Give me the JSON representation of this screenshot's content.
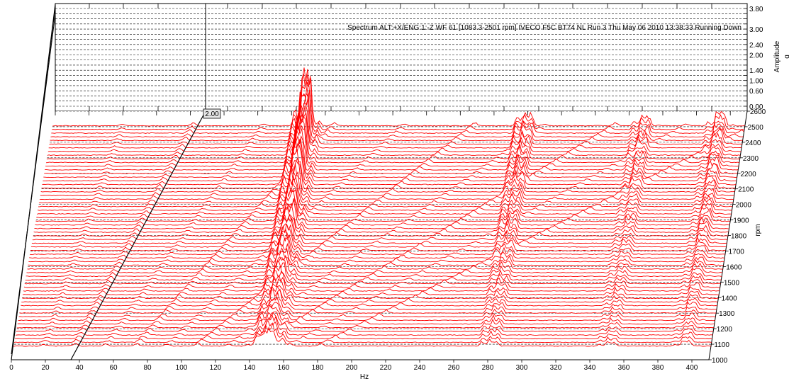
{
  "chart_data": {
    "type": "waterfall",
    "title": "Spectrum ALT:+X/ENG:1:-Z WF 61 [1083.3-2501 rpm]  IVECO F5C  BT74 NL Run 3  Thu May 06 2010 13:38:33  Running Down",
    "xlabel": "Hz",
    "ylabel": "rpm",
    "zlabel_top": "Amplitude",
    "zlabel_unit": "g",
    "cursor_label": "2.00",
    "x_ticks": [
      0,
      20,
      40,
      60,
      80,
      100,
      120,
      140,
      160,
      180,
      200,
      220,
      240,
      260,
      280,
      300,
      320,
      340,
      360,
      380,
      400
    ],
    "rpm_ticks": [
      1000,
      1100,
      1200,
      1300,
      1400,
      1500,
      1600,
      1700,
      1800,
      1900,
      2000,
      2100,
      2200,
      2300,
      2400,
      2500,
      2600
    ],
    "amp_ticks": [
      "0.00",
      "0.60",
      "1.00",
      "1.40",
      "2.00",
      "2.40",
      "3.00",
      "3.80"
    ],
    "xlim": [
      0,
      410
    ],
    "rpm_range": [
      1083.3,
      2501
    ],
    "zlim": [
      0,
      3.8
    ],
    "trace_count": 61,
    "trace_color": "#ff0000",
    "major_peaks": [
      {
        "freq_hz": 150,
        "max_amplitude_g": 2.0
      },
      {
        "freq_hz": 280,
        "max_amplitude_g": 0.6
      },
      {
        "freq_hz": 350,
        "max_amplitude_g": 0.4
      },
      {
        "freq_hz": 395,
        "max_amplitude_g": 0.5
      }
    ],
    "orders": [
      1,
      2,
      3,
      4,
      5,
      6,
      7,
      8,
      9,
      10
    ],
    "grid": true,
    "legend": "none"
  }
}
